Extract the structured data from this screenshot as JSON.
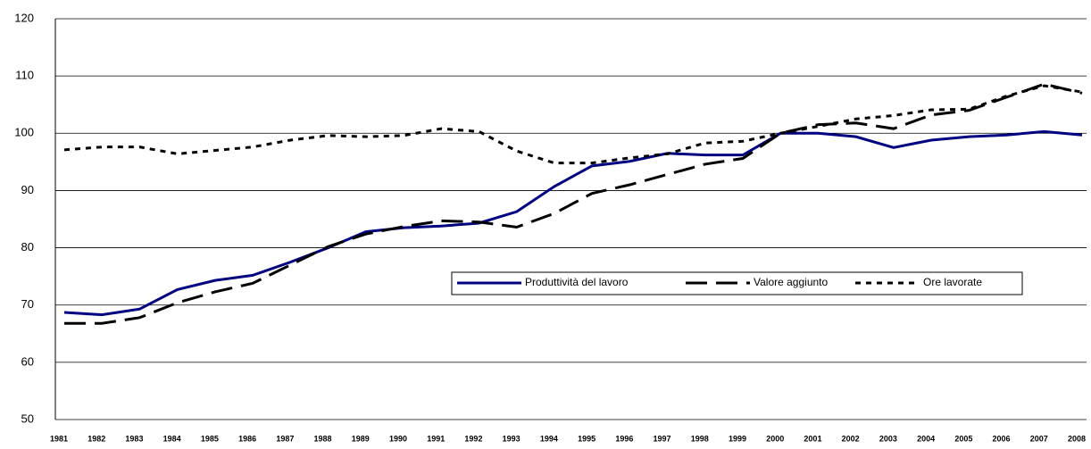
{
  "chart_data": {
    "type": "line",
    "categories": [
      "1981",
      "1982",
      "1983",
      "1984",
      "1985",
      "1986",
      "1987",
      "1988",
      "1989",
      "1990",
      "1991",
      "1992",
      "1993",
      "1994",
      "1995",
      "1996",
      "1997",
      "1998",
      "1999",
      "2000",
      "2001",
      "2002",
      "2003",
      "2004",
      "2005",
      "2006",
      "2007",
      "2008"
    ],
    "series": [
      {
        "name": "Produttività del lavoro",
        "color": "#000080",
        "dash": "solid",
        "values": [
          68.7,
          68.3,
          69.3,
          72.7,
          74.3,
          75.2,
          77.5,
          80,
          82.8,
          83.5,
          83.8,
          84.3,
          86.3,
          90.7,
          94.3,
          95.1,
          96.5,
          96.2,
          96.2,
          100,
          100,
          99.4,
          97.5,
          98.8,
          99.4,
          99.7,
          100.3,
          99.7
        ]
      },
      {
        "name": "Valore aggiunto",
        "color": "#000000",
        "dash": "long",
        "values": [
          66.8,
          66.8,
          67.8,
          70.4,
          72.3,
          73.8,
          77,
          80.2,
          82.4,
          83.7,
          84.7,
          84.5,
          83.6,
          86,
          89.5,
          91,
          92.8,
          94.6,
          95.6,
          100,
          101.5,
          101.8,
          100.8,
          103.2,
          104,
          106.3,
          108.6,
          107
        ]
      },
      {
        "name": "Ore lavorate",
        "color": "#000000",
        "dash": "dot",
        "values": [
          97.1,
          97.6,
          97.6,
          96.4,
          97,
          97.6,
          98.8,
          99.6,
          99.4,
          99.6,
          100.8,
          100.3,
          96.9,
          94.8,
          94.8,
          95.7,
          96.4,
          98.3,
          98.6,
          100,
          101.2,
          102.5,
          103.1,
          104.1,
          104.2,
          106.5,
          108.3,
          107.2
        ]
      }
    ],
    "ylim": [
      50,
      120
    ],
    "yticks": [
      50,
      60,
      70,
      80,
      90,
      100,
      110,
      120
    ],
    "grid": true
  }
}
